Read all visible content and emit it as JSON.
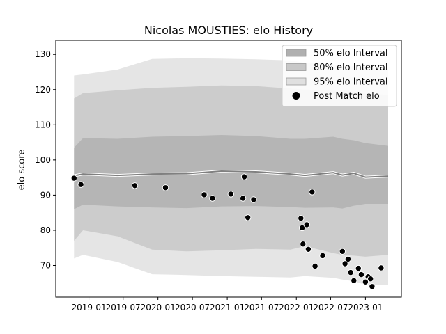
{
  "chart_data": {
    "type": "scatter",
    "title": "Nicolas MOUSTIES: elo History",
    "xlabel": "",
    "ylabel": "elo score",
    "x_type": "date",
    "xlim": [
      "2018-07-10",
      "2023-07-10"
    ],
    "ylim": [
      61,
      134
    ],
    "x_ticks": [
      "2019-01",
      "2019-07",
      "2020-01",
      "2020-07",
      "2021-01",
      "2021-07",
      "2022-01",
      "2022-07",
      "2023-01"
    ],
    "y_ticks": [
      70,
      80,
      90,
      100,
      110,
      120,
      130
    ],
    "grid": false,
    "legend_position": "top-right",
    "colors": {
      "band_50": "#b0b0b0",
      "band_80": "#c8c8c8",
      "band_95": "#e0e0e0",
      "mean_line": "#808080",
      "points": "#000000"
    },
    "legend": [
      {
        "label": "50% elo Interval",
        "kind": "band",
        "color": "#b0b0b0"
      },
      {
        "label": "80% elo Interval",
        "kind": "band",
        "color": "#c8c8c8"
      },
      {
        "label": "95% elo Interval",
        "kind": "band",
        "color": "#e0e0e0"
      },
      {
        "label": "Post Match elo",
        "kind": "marker",
        "color": "#000000"
      }
    ],
    "mean_curve": {
      "x": [
        "2018-10-15",
        "2018-12-01",
        "2019-06-01",
        "2019-12-01",
        "2020-06-01",
        "2020-12-01",
        "2021-06-01",
        "2021-12-01",
        "2022-02-15",
        "2022-07-15",
        "2022-09-01",
        "2022-11-01",
        "2023-01-01",
        "2023-05-01"
      ],
      "y": [
        95.5,
        96.0,
        95.6,
        96.0,
        96.1,
        96.8,
        96.6,
        96.0,
        95.6,
        96.4,
        95.7,
        96.2,
        95.1,
        95.4
      ]
    },
    "bands": {
      "p50": {
        "x": [
          "2018-10-15",
          "2018-12-01",
          "2019-06-01",
          "2019-12-01",
          "2020-06-01",
          "2020-12-01",
          "2021-06-01",
          "2021-12-01",
          "2022-02-15",
          "2022-07-15",
          "2022-09-01",
          "2022-11-01",
          "2023-01-01",
          "2023-05-01"
        ],
        "upper": [
          103.5,
          106.2,
          106.0,
          106.6,
          106.8,
          107.1,
          106.8,
          106.0,
          106.0,
          106.6,
          106.0,
          105.6,
          104.8,
          104.0
        ],
        "lower": [
          86.0,
          87.3,
          86.8,
          86.5,
          86.3,
          86.8,
          86.9,
          86.6,
          86.4,
          86.5,
          86.2,
          87.0,
          87.5,
          87.5
        ]
      },
      "p80": {
        "x": [
          "2018-10-15",
          "2018-12-01",
          "2019-06-01",
          "2019-12-01",
          "2020-06-01",
          "2020-12-01",
          "2021-06-01",
          "2021-12-01",
          "2022-02-15",
          "2022-07-15",
          "2022-09-01",
          "2022-11-01",
          "2023-01-01",
          "2023-05-01"
        ],
        "upper": [
          117.5,
          119.0,
          119.8,
          120.5,
          120.8,
          121.2,
          121.0,
          120.3,
          120.0,
          119.8,
          119.0,
          119.3,
          118.8,
          118.5
        ],
        "lower": [
          77.0,
          80.0,
          78.3,
          74.5,
          74.0,
          74.3,
          74.7,
          74.5,
          75.5,
          73.5,
          73.0,
          72.8,
          72.5,
          73.0
        ]
      },
      "p95": {
        "x": [
          "2018-10-15",
          "2018-12-01",
          "2019-06-01",
          "2019-12-01",
          "2020-06-01",
          "2020-12-01",
          "2021-06-01",
          "2021-12-01",
          "2022-02-15",
          "2022-07-15",
          "2022-09-01",
          "2022-11-01",
          "2023-01-01",
          "2023-05-01"
        ],
        "upper": [
          124.0,
          124.3,
          125.7,
          128.7,
          128.9,
          128.8,
          128.6,
          128.3,
          127.6,
          127.2,
          126.5,
          126.7,
          126.2,
          126.0
        ],
        "lower": [
          72.0,
          73.0,
          71.0,
          67.5,
          67.3,
          67.0,
          66.8,
          66.6,
          67.0,
          66.5,
          66.0,
          65.5,
          64.5,
          64.5
        ]
      }
    },
    "series": [
      {
        "name": "Post Match elo",
        "x": [
          "2018-10-15",
          "2018-11-20",
          "2019-09-01",
          "2020-02-10",
          "2020-09-01",
          "2020-10-15",
          "2021-01-20",
          "2021-04-01",
          "2021-03-25",
          "2021-04-20",
          "2021-05-20",
          "2022-01-25",
          "2022-02-01",
          "2022-02-05",
          "2022-02-25",
          "2022-03-05",
          "2022-03-25",
          "2022-04-10",
          "2022-05-20",
          "2022-09-01",
          "2022-09-15",
          "2022-10-01",
          "2022-10-15",
          "2022-11-01",
          "2022-11-25",
          "2022-12-10",
          "2023-01-01",
          "2023-01-15",
          "2023-02-05",
          "2023-01-28",
          "2023-03-25"
        ],
        "y": [
          94.8,
          93.0,
          92.7,
          92.1,
          90.1,
          89.1,
          90.3,
          95.2,
          89.1,
          83.6,
          88.7,
          83.4,
          80.7,
          76.1,
          81.6,
          74.6,
          90.9,
          69.8,
          72.8,
          74.0,
          70.5,
          71.8,
          68.0,
          65.7,
          69.2,
          67.4,
          65.3,
          66.8,
          64.0,
          66.2,
          69.3
        ]
      }
    ]
  }
}
